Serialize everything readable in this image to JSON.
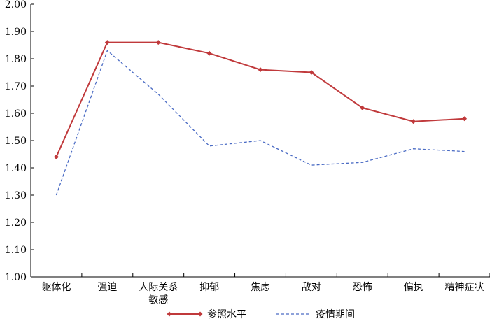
{
  "chart_data": {
    "type": "line",
    "categories": [
      "躯体化",
      "强迫",
      "人际关系敏感",
      "抑郁",
      "焦虑",
      "敌对",
      "恐怖",
      "偏执",
      "精神症状"
    ],
    "category_display": [
      [
        "躯体化"
      ],
      [
        "强迫"
      ],
      [
        "人际关系",
        "敏感"
      ],
      [
        "抑郁"
      ],
      [
        "焦虑"
      ],
      [
        "敌对"
      ],
      [
        "恐怖"
      ],
      [
        "偏执"
      ],
      [
        "精神症状"
      ]
    ],
    "ylim": [
      1.0,
      2.0
    ],
    "yticks": [
      "1.00",
      "1.10",
      "1.20",
      "1.30",
      "1.40",
      "1.50",
      "1.60",
      "1.70",
      "1.80",
      "1.90",
      "2.00"
    ],
    "grid": false,
    "legend_position": "bottom",
    "series": [
      {
        "name": "参照水平",
        "values": [
          1.44,
          1.86,
          1.86,
          1.82,
          1.76,
          1.75,
          1.62,
          1.57,
          1.58
        ],
        "color": "#c0393b",
        "style": "solid",
        "marker": "diamond"
      },
      {
        "name": "疫情期间",
        "values": [
          1.3,
          1.83,
          1.67,
          1.48,
          1.5,
          1.41,
          1.42,
          1.47,
          1.46
        ],
        "color": "#4a6bc4",
        "style": "dashed",
        "marker": "none"
      }
    ]
  }
}
